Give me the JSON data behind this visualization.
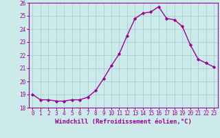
{
  "x": [
    0,
    1,
    2,
    3,
    4,
    5,
    6,
    7,
    8,
    9,
    10,
    11,
    12,
    13,
    14,
    15,
    16,
    17,
    18,
    19,
    20,
    21,
    22,
    23
  ],
  "y": [
    19.0,
    18.6,
    18.6,
    18.5,
    18.5,
    18.6,
    18.6,
    18.8,
    19.3,
    20.2,
    21.2,
    22.1,
    23.5,
    24.8,
    25.2,
    25.3,
    25.7,
    24.8,
    24.7,
    24.2,
    22.8,
    21.7,
    21.4,
    21.1
  ],
  "line_color": "#990099",
  "marker": "D",
  "marker_size": 2.2,
  "bg_color": "#cceaea",
  "grid_color": "#aad4d4",
  "xlabel": "Windchill (Refroidissement éolien,°C)",
  "xlabel_color": "#990099",
  "tick_color": "#990099",
  "ylim": [
    18,
    26
  ],
  "xlim": [
    -0.5,
    23.5
  ],
  "yticks": [
    18,
    19,
    20,
    21,
    22,
    23,
    24,
    25,
    26
  ],
  "xtick_labels": [
    "0",
    "1",
    "2",
    "3",
    "4",
    "5",
    "6",
    "7",
    "8",
    "9",
    "10",
    "11",
    "12",
    "13",
    "14",
    "15",
    "16",
    "17",
    "18",
    "19",
    "20",
    "21",
    "22",
    "23"
  ],
  "tick_fontsize": 5.5,
  "xlabel_fontsize": 6.5,
  "linewidth": 1.0
}
